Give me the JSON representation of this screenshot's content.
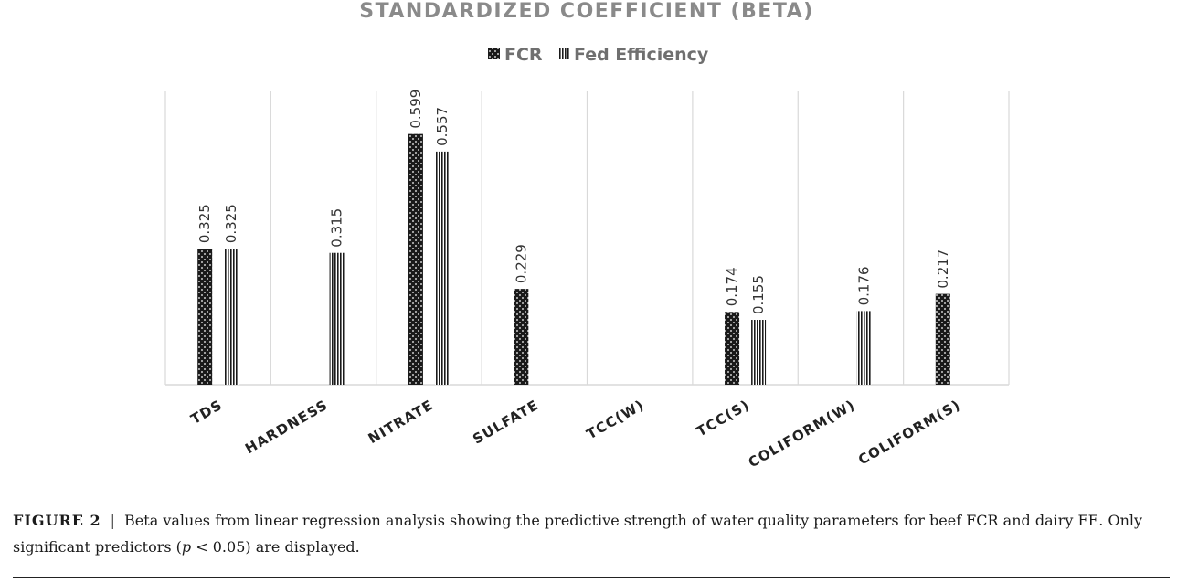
{
  "chart_data": {
    "type": "bar",
    "title": "STANDARDIZED COEFFICIENT (BETA)",
    "categories": [
      "TDS",
      "HARDNESS",
      "NITRATE",
      "SULFATE",
      "TCC(W)",
      "TCC(S)",
      "COLIFORM(W)",
      "COLIFORM(S)"
    ],
    "series": [
      {
        "name": "FCR",
        "values": [
          0.325,
          null,
          0.599,
          0.229,
          null,
          0.174,
          null,
          0.217
        ],
        "pattern": "dots"
      },
      {
        "name": "Fed Efficiency",
        "values": [
          0.325,
          0.315,
          0.557,
          null,
          null,
          0.155,
          0.176,
          null
        ],
        "pattern": "vertical-stripes"
      }
    ],
    "ylim": [
      0,
      0.7
    ],
    "grid": "vertical-only",
    "legend_position": "top",
    "data_labels": true,
    "colors": {
      "bar": "#1a1a1a",
      "grid": "#d9d9d9",
      "title": "#8a8a8a"
    }
  },
  "caption": {
    "figure_label": "FIGURE 2",
    "separator": "|",
    "text_before_p": "Beta values from linear regression analysis showing the predictive strength of water quality parameters for beef FCR and dairy FE. Only significant predictors (",
    "p_symbol": "p",
    "text_after_p": " < 0.05) are displayed."
  }
}
